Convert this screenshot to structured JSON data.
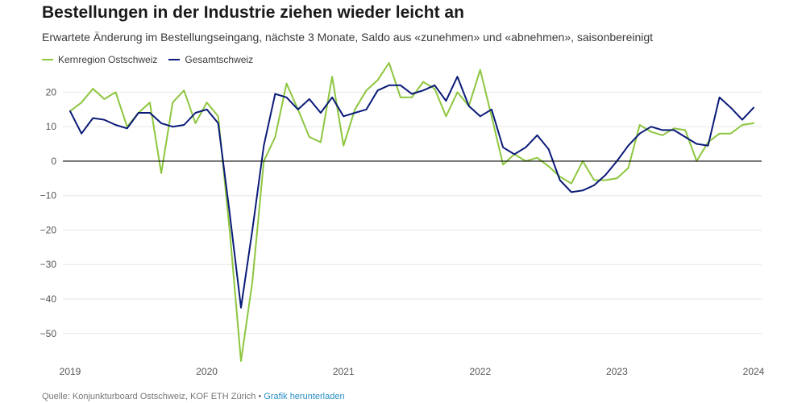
{
  "header": {
    "title": "Bestellungen in der Industrie ziehen wieder leicht an",
    "subtitle": "Erwartete Änderung im Bestellungseingang, nächste 3 Monate, Saldo aus «zunehmen» und «abnehmen», saisonbereinigt"
  },
  "footer": {
    "source": "Quelle: Konjunkturboard Ostschweiz, KOF ETH Zürich",
    "separator": " • ",
    "download_link": "Grafik herunterladen"
  },
  "colors": {
    "kernregion": "#8dc63f",
    "gesamtschweiz": "#0a1a78",
    "zero_line": "#000000",
    "grid": "#e6e6e6",
    "axis_text": "#555555"
  },
  "chart_data": {
    "type": "line",
    "x_unit": "year",
    "x_ticks": [
      2019,
      2020,
      2021,
      2022,
      2023,
      2024
    ],
    "x_tick_labels": [
      "2019",
      "2020",
      "2021",
      "2022",
      "2023",
      "2024"
    ],
    "xlim": [
      2019,
      2024
    ],
    "y_ticks": [
      -50,
      -40,
      -30,
      -20,
      -10,
      0,
      10,
      20
    ],
    "y_tick_labels": [
      "−50",
      "−40",
      "−30",
      "−20",
      "−10",
      "0",
      "10",
      "20"
    ],
    "ylim": [
      -58,
      25
    ],
    "grid": true,
    "legend_position": "top-left",
    "series": [
      {
        "name": "Kernregion Ostschweiz",
        "color_key": "kernregion",
        "points": [
          [
            2019.0,
            14.5
          ],
          [
            2019.083,
            17.0
          ],
          [
            2019.167,
            21.0
          ],
          [
            2019.25,
            18.0
          ],
          [
            2019.333,
            20.0
          ],
          [
            2019.417,
            10.0
          ],
          [
            2019.5,
            14.0
          ],
          [
            2019.583,
            17.0
          ],
          [
            2019.667,
            -3.5
          ],
          [
            2019.75,
            17.0
          ],
          [
            2019.833,
            20.5
          ],
          [
            2019.917,
            11.0
          ],
          [
            2020.0,
            17.0
          ],
          [
            2020.083,
            13.0
          ],
          [
            2020.167,
            -20.0
          ],
          [
            2020.25,
            -58.0
          ],
          [
            2020.333,
            -35.0
          ],
          [
            2020.417,
            0.0
          ],
          [
            2020.5,
            7.0
          ],
          [
            2020.583,
            22.5
          ],
          [
            2020.667,
            15.0
          ],
          [
            2020.75,
            7.0
          ],
          [
            2020.833,
            5.5
          ],
          [
            2020.917,
            24.5
          ],
          [
            2021.0,
            4.5
          ],
          [
            2021.083,
            15.0
          ],
          [
            2021.167,
            20.5
          ],
          [
            2021.25,
            23.5
          ],
          [
            2021.333,
            28.5
          ],
          [
            2021.417,
            18.5
          ],
          [
            2021.5,
            18.5
          ],
          [
            2021.583,
            23.0
          ],
          [
            2021.667,
            21.0
          ],
          [
            2021.75,
            13.0
          ],
          [
            2021.833,
            20.0
          ],
          [
            2021.917,
            16.0
          ],
          [
            2022.0,
            26.5
          ],
          [
            2022.083,
            13.0
          ],
          [
            2022.167,
            -1.0
          ],
          [
            2022.25,
            2.0
          ],
          [
            2022.333,
            0.0
          ],
          [
            2022.417,
            1.0
          ],
          [
            2022.5,
            -1.5
          ],
          [
            2022.583,
            -4.5
          ],
          [
            2022.667,
            -6.5
          ],
          [
            2022.75,
            0.0
          ],
          [
            2022.833,
            -5.5
          ],
          [
            2022.917,
            -5.5
          ],
          [
            2023.0,
            -5.0
          ],
          [
            2023.083,
            -2.0
          ],
          [
            2023.167,
            10.5
          ],
          [
            2023.25,
            8.5
          ],
          [
            2023.333,
            7.5
          ],
          [
            2023.417,
            9.5
          ],
          [
            2023.5,
            9.0
          ],
          [
            2023.583,
            0.0
          ],
          [
            2023.667,
            5.5
          ],
          [
            2023.75,
            8.0
          ],
          [
            2023.833,
            8.0
          ],
          [
            2023.917,
            10.5
          ],
          [
            2024.0,
            11.0
          ]
        ]
      },
      {
        "name": "Gesamtschweiz",
        "color_key": "gesamtschweiz",
        "points": [
          [
            2019.0,
            14.5
          ],
          [
            2019.083,
            8.0
          ],
          [
            2019.167,
            12.5
          ],
          [
            2019.25,
            12.0
          ],
          [
            2019.333,
            10.5
          ],
          [
            2019.417,
            9.5
          ],
          [
            2019.5,
            14.0
          ],
          [
            2019.583,
            14.0
          ],
          [
            2019.667,
            11.0
          ],
          [
            2019.75,
            10.0
          ],
          [
            2019.833,
            10.5
          ],
          [
            2019.917,
            14.0
          ],
          [
            2020.0,
            15.0
          ],
          [
            2020.083,
            11.0
          ],
          [
            2020.167,
            -15.0
          ],
          [
            2020.25,
            -42.5
          ],
          [
            2020.333,
            -20.0
          ],
          [
            2020.417,
            4.5
          ],
          [
            2020.5,
            19.5
          ],
          [
            2020.583,
            18.5
          ],
          [
            2020.667,
            15.0
          ],
          [
            2020.75,
            18.0
          ],
          [
            2020.833,
            14.0
          ],
          [
            2020.917,
            18.5
          ],
          [
            2021.0,
            13.0
          ],
          [
            2021.083,
            14.0
          ],
          [
            2021.167,
            15.0
          ],
          [
            2021.25,
            20.5
          ],
          [
            2021.333,
            22.0
          ],
          [
            2021.417,
            22.0
          ],
          [
            2021.5,
            19.5
          ],
          [
            2021.583,
            20.5
          ],
          [
            2021.667,
            22.0
          ],
          [
            2021.75,
            17.5
          ],
          [
            2021.833,
            24.5
          ],
          [
            2021.917,
            16.0
          ],
          [
            2022.0,
            13.0
          ],
          [
            2022.083,
            15.0
          ],
          [
            2022.167,
            4.0
          ],
          [
            2022.25,
            2.0
          ],
          [
            2022.333,
            4.0
          ],
          [
            2022.417,
            7.5
          ],
          [
            2022.5,
            3.5
          ],
          [
            2022.583,
            -5.5
          ],
          [
            2022.667,
            -9.0
          ],
          [
            2022.75,
            -8.5
          ],
          [
            2022.833,
            -7.0
          ],
          [
            2022.917,
            -4.0
          ],
          [
            2023.0,
            0.0
          ],
          [
            2023.083,
            4.5
          ],
          [
            2023.167,
            8.0
          ],
          [
            2023.25,
            10.0
          ],
          [
            2023.333,
            9.0
          ],
          [
            2023.417,
            9.0
          ],
          [
            2023.5,
            7.0
          ],
          [
            2023.583,
            5.0
          ],
          [
            2023.667,
            4.5
          ],
          [
            2023.75,
            18.5
          ],
          [
            2023.833,
            15.5
          ],
          [
            2023.917,
            12.0
          ],
          [
            2024.0,
            15.5
          ]
        ]
      }
    ]
  }
}
